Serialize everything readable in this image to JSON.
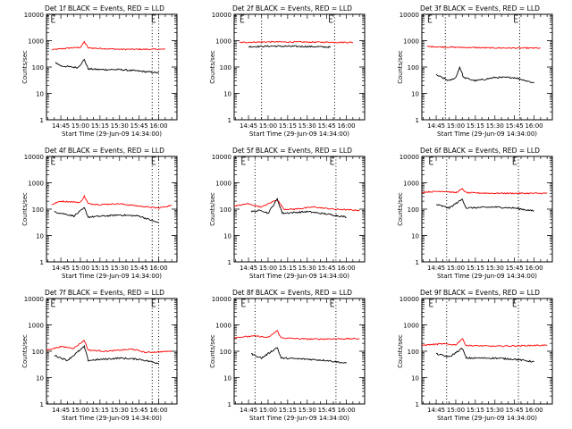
{
  "xlabel": "Start Time (29-Jun-09 14:34:00)",
  "ylabel": "Counts/sec",
  "x_ticks": [
    "14:45",
    "15:00",
    "15:15",
    "15:30",
    "15:45",
    "16:00"
  ],
  "y_ticks": [
    "1",
    "10",
    "100",
    "1000",
    "10000"
  ],
  "colors": {
    "events": "#000000",
    "lld": "#ff0000",
    "axis": "#000000",
    "background": "#ffffff"
  },
  "chart_data": [
    {
      "type": "line",
      "title": "Det 1f BLACK = Events, RED = LLD",
      "scale_y": "log",
      "ylim": [
        1,
        10000
      ],
      "xlim": [
        "14:34",
        "16:14"
      ],
      "x_ticks": [
        "14:45",
        "15:00",
        "15:15",
        "15:30",
        "15:45",
        "16:00"
      ],
      "markers": {
        "first": "14:38",
        "E": "15:55",
        "lines": [
          "15:55",
          "16:00"
        ]
      },
      "start": "14:38",
      "end": "16:05",
      "flare_peak": "15:03",
      "events_start": "14:41",
      "series": [
        {
          "color": "red",
          "values": [
            [
              "14:38",
              450
            ],
            [
              "14:50",
              520
            ],
            [
              "15:00",
              560
            ],
            [
              "15:03",
              900
            ],
            [
              "15:06",
              530
            ],
            [
              "15:30",
              470
            ],
            [
              "16:05",
              470
            ]
          ]
        },
        {
          "color": "black",
          "values": [
            [
              "14:41",
              150
            ],
            [
              "14:45",
              110
            ],
            [
              "14:58",
              95
            ],
            [
              "15:03",
              190
            ],
            [
              "15:06",
              85
            ],
            [
              "15:15",
              80
            ],
            [
              "15:30",
              80
            ],
            [
              "15:45",
              70
            ],
            [
              "16:00",
              60
            ]
          ]
        }
      ]
    },
    {
      "type": "line",
      "title": "Det 2f BLACK = Events, RED = LLD",
      "scale_y": "log",
      "ylim": [
        1,
        10000
      ],
      "xlim": [
        "14:34",
        "16:14"
      ],
      "x_ticks": [
        "14:45",
        "15:00",
        "15:15",
        "15:30",
        "15:45",
        "16:00"
      ],
      "markers": {
        "first": "14:39",
        "E": "15:47",
        "lines": [
          "14:55",
          "15:51"
        ]
      },
      "start": "14:38",
      "end": "16:05",
      "flare_peak": "15:03",
      "series": [
        {
          "color": "red",
          "values": [
            [
              "14:38",
              850
            ],
            [
              "15:00",
              900
            ],
            [
              "15:30",
              880
            ],
            [
              "16:05",
              860
            ]
          ]
        },
        {
          "color": "black",
          "values": [
            [
              "14:45",
              590
            ],
            [
              "15:03",
              620
            ],
            [
              "15:30",
              600
            ],
            [
              "15:48",
              570
            ]
          ]
        }
      ]
    },
    {
      "type": "line",
      "title": "Det 3f BLACK = Events, RED = LLD",
      "scale_y": "log",
      "ylim": [
        1,
        10000
      ],
      "xlim": [
        "14:34",
        "16:14"
      ],
      "x_ticks": [
        "14:45",
        "15:00",
        "15:15",
        "15:30",
        "15:45",
        "16:00"
      ],
      "markers": {
        "first": "14:39",
        "E": "15:45",
        "lines": [
          "14:52",
          "15:49"
        ]
      },
      "start": "14:38",
      "end": "16:05",
      "flare_peak": "15:03",
      "series": [
        {
          "color": "red",
          "values": [
            [
              "14:38",
              600
            ],
            [
              "15:00",
              560
            ],
            [
              "15:30",
              530
            ],
            [
              "16:05",
              520
            ]
          ]
        },
        {
          "color": "black",
          "values": [
            [
              "14:45",
              50
            ],
            [
              "14:55",
              30
            ],
            [
              "15:00",
              40
            ],
            [
              "15:03",
              100
            ],
            [
              "15:06",
              40
            ],
            [
              "15:15",
              30
            ],
            [
              "15:30",
              40
            ],
            [
              "15:45",
              40
            ],
            [
              "16:00",
              25
            ]
          ]
        }
      ]
    },
    {
      "type": "line",
      "title": "Det 4f BLACK = Events, RED = LLD",
      "scale_y": "log",
      "ylim": [
        1,
        10000
      ],
      "xlim": [
        "14:34",
        "16:14"
      ],
      "x_ticks": [
        "14:45",
        "15:00",
        "15:15",
        "15:30",
        "15:45",
        "16:00"
      ],
      "markers": {
        "first": "14:38",
        "E": "15:55",
        "lines": [
          "15:55",
          "16:00"
        ]
      },
      "start": "14:38",
      "end": "16:10",
      "flare_peak": "15:03",
      "series": [
        {
          "color": "red",
          "values": [
            [
              "14:38",
              150
            ],
            [
              "14:45",
              200
            ],
            [
              "15:00",
              180
            ],
            [
              "15:03",
              310
            ],
            [
              "15:06",
              160
            ],
            [
              "15:15",
              150
            ],
            [
              "15:30",
              160
            ],
            [
              "15:45",
              130
            ],
            [
              "16:00",
              110
            ],
            [
              "16:10",
              140
            ]
          ]
        },
        {
          "color": "black",
          "values": [
            [
              "14:40",
              80
            ],
            [
              "14:55",
              55
            ],
            [
              "15:03",
              110
            ],
            [
              "15:06",
              50
            ],
            [
              "15:30",
              60
            ],
            [
              "15:45",
              55
            ],
            [
              "16:00",
              30
            ]
          ]
        }
      ]
    },
    {
      "type": "line",
      "title": "Det 5f BLACK = Events, RED = LLD",
      "scale_y": "log",
      "ylim": [
        1,
        10000
      ],
      "xlim": [
        "14:34",
        "16:14"
      ],
      "x_ticks": [
        "14:45",
        "15:00",
        "15:15",
        "15:30",
        "15:45",
        "16:00"
      ],
      "markers": {
        "first": "14:40",
        "E": "15:48",
        "lines": [
          "14:50",
          "15:52"
        ]
      },
      "start": "14:34",
      "end": "16:10",
      "flare_peak": "15:07",
      "series": [
        {
          "color": "red",
          "values": [
            [
              "14:34",
              130
            ],
            [
              "14:44",
              160
            ],
            [
              "14:55",
              120
            ],
            [
              "15:07",
              230
            ],
            [
              "15:12",
              100
            ],
            [
              "15:20",
              100
            ],
            [
              "15:35",
              120
            ],
            [
              "15:50",
              100
            ],
            [
              "16:10",
              90
            ]
          ]
        },
        {
          "color": "black",
          "values": [
            [
              "14:47",
              80
            ],
            [
              "14:55",
              90
            ],
            [
              "15:00",
              70
            ],
            [
              "15:07",
              240
            ],
            [
              "15:11",
              70
            ],
            [
              "15:30",
              80
            ],
            [
              "15:45",
              65
            ],
            [
              "16:00",
              50
            ]
          ]
        }
      ]
    },
    {
      "type": "line",
      "title": "Det 6f BLACK = Events, RED = LLD",
      "scale_y": "log",
      "ylim": [
        1,
        10000
      ],
      "xlim": [
        "14:34",
        "16:14"
      ],
      "x_ticks": [
        "14:45",
        "15:00",
        "15:15",
        "15:30",
        "15:45",
        "16:00"
      ],
      "markers": {
        "first": "14:40",
        "E": "15:44",
        "lines": [
          "14:53",
          "15:48"
        ]
      },
      "start": "14:34",
      "end": "16:10",
      "flare_peak": "15:05",
      "series": [
        {
          "color": "red",
          "values": [
            [
              "14:34",
              440
            ],
            [
              "14:50",
              480
            ],
            [
              "15:00",
              420
            ],
            [
              "15:05",
              580
            ],
            [
              "15:08",
              420
            ],
            [
              "15:30",
              400
            ],
            [
              "16:10",
              400
            ]
          ]
        },
        {
          "color": "black",
          "values": [
            [
              "14:45",
              150
            ],
            [
              "14:55",
              110
            ],
            [
              "15:05",
              240
            ],
            [
              "15:08",
              110
            ],
            [
              "15:30",
              120
            ],
            [
              "15:45",
              110
            ],
            [
              "16:00",
              85
            ]
          ]
        }
      ]
    },
    {
      "type": "line",
      "title": "Det 7f BLACK = Events, RED = LLD",
      "scale_y": "log",
      "ylim": [
        1,
        10000
      ],
      "xlim": [
        "14:34",
        "16:14"
      ],
      "x_ticks": [
        "14:45",
        "15:00",
        "15:15",
        "15:30",
        "15:45",
        "16:00"
      ],
      "markers": {
        "first": "14:38",
        "E": "15:55",
        "lines": [
          "15:55",
          "16:00"
        ]
      },
      "start": "14:34",
      "end": "16:10",
      "flare_peak": "15:03",
      "series": [
        {
          "color": "red",
          "values": [
            [
              "14:34",
              110
            ],
            [
              "14:45",
              150
            ],
            [
              "14:55",
              130
            ],
            [
              "15:03",
              260
            ],
            [
              "15:06",
              110
            ],
            [
              "15:20",
              100
            ],
            [
              "15:40",
              120
            ],
            [
              "15:50",
              90
            ],
            [
              "16:10",
              100
            ]
          ]
        },
        {
          "color": "black",
          "values": [
            [
              "14:40",
              70
            ],
            [
              "14:50",
              45
            ],
            [
              "15:03",
              150
            ],
            [
              "15:06",
              45
            ],
            [
              "15:30",
              55
            ],
            [
              "15:45",
              50
            ],
            [
              "16:00",
              35
            ]
          ]
        }
      ]
    },
    {
      "type": "line",
      "title": "Det 8f BLACK = Events, RED = LLD",
      "scale_y": "log",
      "ylim": [
        1,
        10000
      ],
      "xlim": [
        "14:34",
        "16:14"
      ],
      "x_ticks": [
        "14:45",
        "15:00",
        "15:15",
        "15:30",
        "15:45",
        "16:00"
      ],
      "markers": {
        "first": "14:40",
        "E": "15:48",
        "lines": [
          "14:50",
          "15:52"
        ]
      },
      "start": "14:34",
      "end": "16:10",
      "flare_peak": "15:07",
      "series": [
        {
          "color": "red",
          "values": [
            [
              "14:34",
              330
            ],
            [
              "14:50",
              380
            ],
            [
              "15:00",
              330
            ],
            [
              "15:07",
              600
            ],
            [
              "15:10",
              320
            ],
            [
              "15:30",
              290
            ],
            [
              "16:10",
              300
            ]
          ]
        },
        {
          "color": "black",
          "values": [
            [
              "14:47",
              80
            ],
            [
              "14:55",
              55
            ],
            [
              "15:07",
              140
            ],
            [
              "15:10",
              55
            ],
            [
              "15:30",
              50
            ],
            [
              "15:45",
              45
            ],
            [
              "16:00",
              35
            ]
          ]
        }
      ]
    },
    {
      "type": "line",
      "title": "Det 9f BLACK = Events, RED = LLD",
      "scale_y": "log",
      "ylim": [
        1,
        10000
      ],
      "xlim": [
        "14:34",
        "16:14"
      ],
      "x_ticks": [
        "14:45",
        "15:00",
        "15:15",
        "15:30",
        "15:45",
        "16:00"
      ],
      "markers": {
        "first": "14:40",
        "E": "15:44",
        "lines": [
          "14:53",
          "15:48"
        ]
      },
      "start": "14:34",
      "end": "16:10",
      "flare_peak": "15:05",
      "series": [
        {
          "color": "red",
          "values": [
            [
              "14:34",
              170
            ],
            [
              "14:50",
              190
            ],
            [
              "15:00",
              175
            ],
            [
              "15:05",
              300
            ],
            [
              "15:08",
              165
            ],
            [
              "15:30",
              155
            ],
            [
              "16:10",
              170
            ]
          ]
        },
        {
          "color": "black",
          "values": [
            [
              "14:45",
              80
            ],
            [
              "14:55",
              60
            ],
            [
              "15:05",
              130
            ],
            [
              "15:08",
              55
            ],
            [
              "15:30",
              55
            ],
            [
              "15:45",
              50
            ],
            [
              "16:00",
              40
            ]
          ]
        }
      ]
    }
  ]
}
